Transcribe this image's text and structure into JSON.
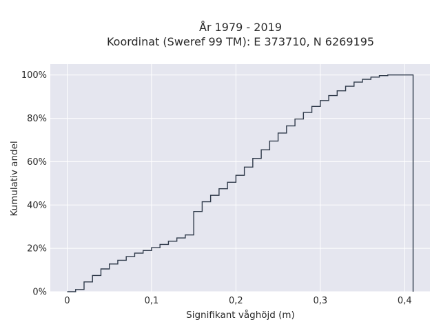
{
  "chart_data": {
    "type": "line",
    "line_shape": "step",
    "title": [
      "År 1979 - 2019",
      "Koordinat (Sweref 99 TM): E 373710, N 6269195"
    ],
    "xlabel": "Signifikant våghöjd (m)",
    "ylabel": "Kumulativ andel",
    "xlim": [
      -0.02,
      0.43
    ],
    "ylim": [
      0,
      1.05
    ],
    "xticks": [
      0,
      0.1,
      0.2,
      0.3,
      0.4
    ],
    "xtick_labels": [
      "0",
      "0,1",
      "0,2",
      "0,3",
      "0,4"
    ],
    "yticks": [
      0,
      0.2,
      0.4,
      0.6,
      0.8,
      1.0
    ],
    "ytick_labels": [
      "0%",
      "20%",
      "40%",
      "60%",
      "80%",
      "100%"
    ],
    "grid": true,
    "background": "#e5e6ef",
    "line_color": "#2f3a4a",
    "series": [
      {
        "x": [
          0,
          0.01,
          0.02,
          0.03,
          0.04,
          0.05,
          0.06,
          0.07,
          0.08,
          0.09,
          0.1,
          0.11,
          0.12,
          0.13,
          0.14,
          0.15,
          0.16,
          0.17,
          0.18,
          0.19,
          0.2,
          0.21,
          0.22,
          0.23,
          0.24,
          0.25,
          0.26,
          0.27,
          0.28,
          0.29,
          0.3,
          0.31,
          0.32,
          0.33,
          0.34,
          0.35,
          0.36,
          0.37,
          0.38,
          0.39,
          0.4,
          0.41
        ],
        "y": [
          0.0,
          0.01,
          0.045,
          0.075,
          0.105,
          0.128,
          0.145,
          0.162,
          0.178,
          0.19,
          0.203,
          0.218,
          0.233,
          0.248,
          0.262,
          0.37,
          0.415,
          0.445,
          0.475,
          0.505,
          0.537,
          0.575,
          0.615,
          0.655,
          0.695,
          0.732,
          0.765,
          0.797,
          0.827,
          0.855,
          0.882,
          0.905,
          0.927,
          0.948,
          0.967,
          0.98,
          0.99,
          0.997,
          1.0,
          1.0,
          1.0,
          0.0
        ]
      }
    ]
  }
}
